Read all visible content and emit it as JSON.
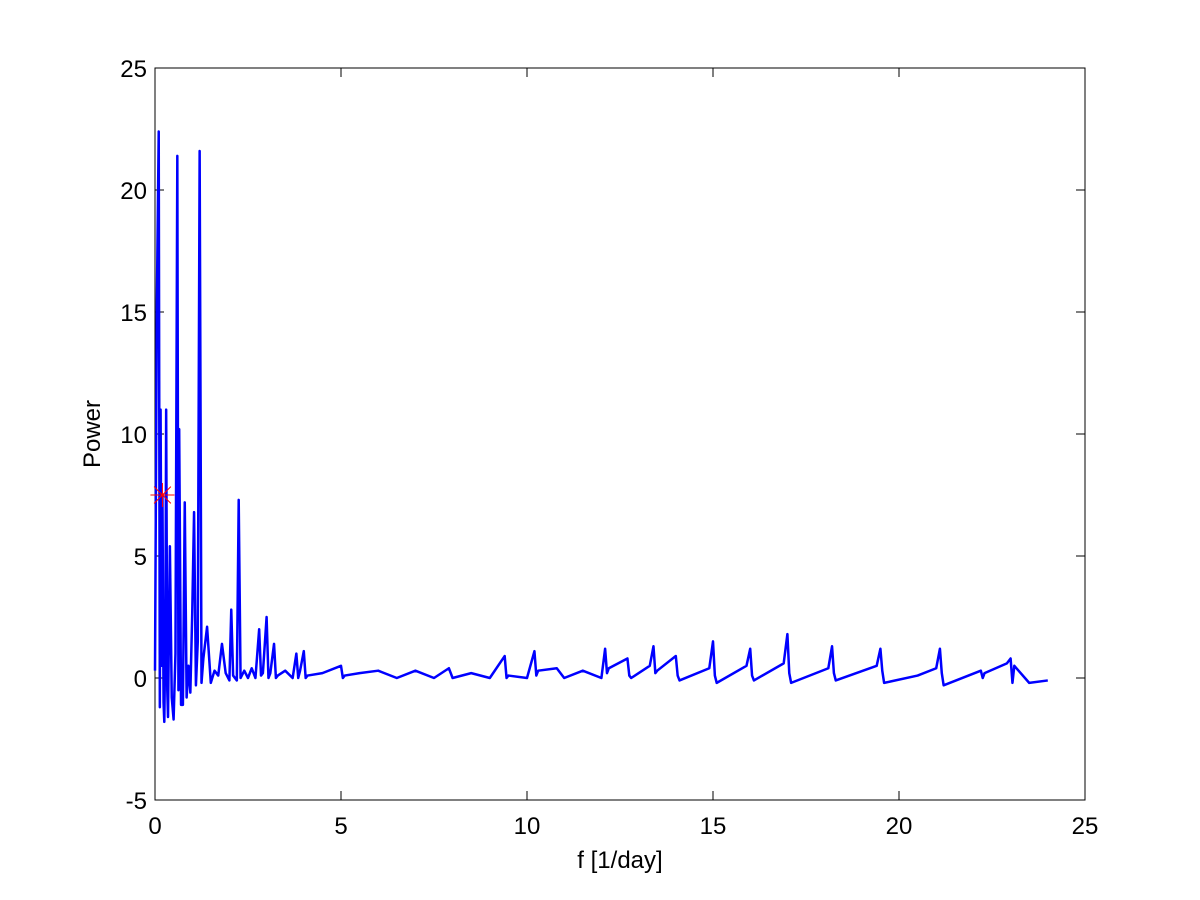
{
  "chart_data": {
    "type": "line",
    "xlabel": "f [1/day]",
    "ylabel": "Power",
    "x": [
      0,
      0.05,
      0.1,
      0.13,
      0.15,
      0.18,
      0.2,
      0.23,
      0.25,
      0.28,
      0.3,
      0.33,
      0.35,
      0.4,
      0.45,
      0.5,
      0.55,
      0.6,
      0.63,
      0.65,
      0.7,
      0.75,
      0.8,
      0.85,
      0.9,
      0.95,
      1.0,
      1.05,
      1.1,
      1.15,
      1.2,
      1.25,
      1.3,
      1.4,
      1.5,
      1.6,
      1.7,
      1.8,
      1.9,
      2.0,
      2.05,
      2.1,
      2.2,
      2.25,
      2.3,
      2.4,
      2.5,
      2.6,
      2.7,
      2.8,
      2.85,
      2.9,
      3.0,
      3.05,
      3.1,
      3.2,
      3.25,
      3.3,
      3.5,
      3.7,
      3.8,
      3.85,
      3.9,
      4.0,
      4.05,
      4.1,
      4.5,
      5.0,
      5.05,
      5.1,
      5.5,
      6.0,
      6.5,
      7.0,
      7.5,
      7.9,
      8.0,
      8.5,
      9.0,
      9.4,
      9.45,
      9.5,
      10.0,
      10.2,
      10.25,
      10.3,
      10.8,
      11.0,
      11.5,
      12.0,
      12.1,
      12.15,
      12.2,
      12.7,
      12.75,
      12.8,
      13.3,
      13.4,
      13.45,
      13.5,
      14.0,
      14.05,
      14.1,
      14.9,
      15.0,
      15.05,
      15.1,
      15.9,
      16.0,
      16.05,
      16.1,
      16.9,
      17.0,
      17.05,
      17.1,
      18.1,
      18.2,
      18.25,
      18.3,
      19.4,
      19.5,
      19.55,
      19.6,
      20.5,
      21.0,
      21.1,
      21.15,
      21.2,
      22.2,
      22.25,
      22.3,
      22.9,
      23.0,
      23.05,
      23.1,
      23.5,
      24.0
    ],
    "series": [
      {
        "color": "#0000ff",
        "values": [
          0.3,
          15.4,
          22.4,
          -1.2,
          11,
          0.5,
          7.5,
          -1,
          -1.8,
          2,
          11,
          -0.5,
          -1.6,
          5.4,
          -0.8,
          -1.7,
          1,
          21.4,
          -0.5,
          10.2,
          -1.1,
          -1.1,
          7.2,
          -0.8,
          0.5,
          -0.6,
          2.6,
          6.8,
          -0.3,
          1.5,
          21.6,
          -0.2,
          0.8,
          2.1,
          -0.2,
          0.3,
          0.1,
          1.4,
          0.2,
          -0.1,
          2.8,
          0.1,
          -0.1,
          7.3,
          0,
          0.3,
          0,
          0.4,
          0,
          2.0,
          0.1,
          0.2,
          2.5,
          0,
          0.2,
          1.4,
          0,
          0.1,
          0.3,
          0,
          1.0,
          0,
          0.3,
          1.1,
          0,
          0.1,
          0.2,
          0.5,
          0,
          0.1,
          0.2,
          0.3,
          0,
          0.3,
          0,
          0.4,
          0,
          0.2,
          0,
          0.9,
          0,
          0.1,
          0,
          1.1,
          0.1,
          0.3,
          0.4,
          0,
          0.3,
          0,
          1.2,
          0.2,
          0.4,
          0.8,
          0.1,
          0,
          0.5,
          1.3,
          0.2,
          0.3,
          0.9,
          0.1,
          -0.1,
          0.4,
          1.5,
          0.1,
          -0.2,
          0.5,
          1.2,
          0.1,
          -0.1,
          0.6,
          1.8,
          0.2,
          -0.2,
          0.4,
          1.3,
          0.2,
          -0.1,
          0.5,
          1.2,
          0.3,
          -0.2,
          0.1,
          0.4,
          1.2,
          0.2,
          -0.3,
          0.3,
          0,
          0.2,
          0.6,
          0.8,
          -0.2,
          0.5,
          -0.2,
          -0.1
        ]
      }
    ],
    "marker": {
      "x": 0.2,
      "y": 7.5,
      "color": "#ff0000"
    },
    "xlim": [
      0,
      25
    ],
    "xticks": [
      0,
      5,
      10,
      15,
      20,
      25
    ],
    "ylim": [
      -5,
      25
    ],
    "yticks": [
      -5,
      0,
      5,
      10,
      15,
      20,
      25
    ]
  }
}
